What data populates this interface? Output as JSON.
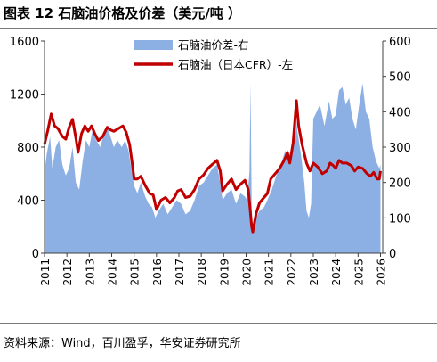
{
  "header": {
    "title": "图表 12 石脑油价格及价差（美元/吨 ）"
  },
  "footer": {
    "source": "资料来源：Wind，百川盈孚，华安证券研究所"
  },
  "colors": {
    "spread_fill": "#8db0e4",
    "price_line": "#c00000",
    "axis": "#404040",
    "text": "#000000"
  },
  "chart_data": {
    "type": "line",
    "legend": [
      {
        "name": "石脑油价差-右",
        "style": "area",
        "axis": "right"
      },
      {
        "name": "石脑油（日本CFR）-左",
        "style": "line",
        "axis": "left"
      }
    ],
    "legend_position": "top-center",
    "grid": false,
    "x_ticks": [
      "2011",
      "2012",
      "2013",
      "2014",
      "2015",
      "2016",
      "2017",
      "2018",
      "2019",
      "2020",
      "2021",
      "2022",
      "2023",
      "2024",
      "2025",
      "2026"
    ],
    "y_left": {
      "ticks": [
        "0",
        "400",
        "800",
        "1200",
        "1600"
      ],
      "range": [
        0,
        1600
      ]
    },
    "y_right": {
      "ticks": [
        "0",
        "100",
        "200",
        "300",
        "400",
        "500",
        "600"
      ],
      "range": [
        0,
        600
      ]
    },
    "series": [
      {
        "name": "石脑油（日本CFR）-左",
        "axis": "left",
        "points": [
          [
            2011.0,
            820
          ],
          [
            2011.15,
            930
          ],
          [
            2011.3,
            1050
          ],
          [
            2011.45,
            960
          ],
          [
            2011.6,
            940
          ],
          [
            2011.8,
            880
          ],
          [
            2011.95,
            860
          ],
          [
            2012.1,
            950
          ],
          [
            2012.25,
            1010
          ],
          [
            2012.4,
            870
          ],
          [
            2012.5,
            760
          ],
          [
            2012.65,
            900
          ],
          [
            2012.8,
            960
          ],
          [
            2012.95,
            920
          ],
          [
            2013.1,
            960
          ],
          [
            2013.25,
            900
          ],
          [
            2013.4,
            850
          ],
          [
            2013.6,
            880
          ],
          [
            2013.8,
            950
          ],
          [
            2013.95,
            930
          ],
          [
            2014.1,
            920
          ],
          [
            2014.3,
            940
          ],
          [
            2014.5,
            960
          ],
          [
            2014.65,
            910
          ],
          [
            2014.8,
            820
          ],
          [
            2014.9,
            700
          ],
          [
            2015.0,
            560
          ],
          [
            2015.15,
            560
          ],
          [
            2015.3,
            580
          ],
          [
            2015.5,
            510
          ],
          [
            2015.7,
            450
          ],
          [
            2015.85,
            440
          ],
          [
            2016.0,
            330
          ],
          [
            2016.2,
            400
          ],
          [
            2016.4,
            420
          ],
          [
            2016.6,
            380
          ],
          [
            2016.8,
            420
          ],
          [
            2016.95,
            470
          ],
          [
            2017.1,
            480
          ],
          [
            2017.3,
            420
          ],
          [
            2017.5,
            430
          ],
          [
            2017.7,
            480
          ],
          [
            2017.9,
            560
          ],
          [
            2018.1,
            590
          ],
          [
            2018.3,
            640
          ],
          [
            2018.5,
            670
          ],
          [
            2018.7,
            700
          ],
          [
            2018.85,
            620
          ],
          [
            2018.95,
            470
          ],
          [
            2019.15,
            520
          ],
          [
            2019.35,
            560
          ],
          [
            2019.55,
            480
          ],
          [
            2019.75,
            520
          ],
          [
            2019.95,
            550
          ],
          [
            2020.1,
            480
          ],
          [
            2020.25,
            200
          ],
          [
            2020.3,
            160
          ],
          [
            2020.45,
            300
          ],
          [
            2020.6,
            380
          ],
          [
            2020.8,
            420
          ],
          [
            2020.95,
            450
          ],
          [
            2021.1,
            560
          ],
          [
            2021.3,
            600
          ],
          [
            2021.5,
            640
          ],
          [
            2021.7,
            700
          ],
          [
            2021.85,
            760
          ],
          [
            2021.95,
            680
          ],
          [
            2022.1,
            830
          ],
          [
            2022.25,
            1150
          ],
          [
            2022.35,
            960
          ],
          [
            2022.5,
            820
          ],
          [
            2022.7,
            680
          ],
          [
            2022.85,
            620
          ],
          [
            2023.0,
            680
          ],
          [
            2023.2,
            650
          ],
          [
            2023.4,
            600
          ],
          [
            2023.6,
            620
          ],
          [
            2023.75,
            680
          ],
          [
            2023.9,
            660
          ],
          [
            2024.0,
            640
          ],
          [
            2024.15,
            700
          ],
          [
            2024.3,
            680
          ],
          [
            2024.5,
            680
          ],
          [
            2024.7,
            660
          ],
          [
            2024.85,
            620
          ],
          [
            2025.0,
            650
          ],
          [
            2025.2,
            640
          ],
          [
            2025.4,
            600
          ],
          [
            2025.55,
            580
          ],
          [
            2025.7,
            610
          ],
          [
            2025.85,
            560
          ],
          [
            2025.95,
            560
          ],
          [
            2026.0,
            620
          ]
        ]
      },
      {
        "name": "石脑油价差-右",
        "axis": "right",
        "points": [
          [
            2011.0,
            230
          ],
          [
            2011.1,
            280
          ],
          [
            2011.25,
            330
          ],
          [
            2011.35,
            240
          ],
          [
            2011.5,
            300
          ],
          [
            2011.65,
            320
          ],
          [
            2011.8,
            250
          ],
          [
            2011.95,
            220
          ],
          [
            2012.1,
            240
          ],
          [
            2012.25,
            300
          ],
          [
            2012.4,
            200
          ],
          [
            2012.55,
            180
          ],
          [
            2012.7,
            260
          ],
          [
            2012.85,
            320
          ],
          [
            2013.0,
            300
          ],
          [
            2013.15,
            350
          ],
          [
            2013.3,
            320
          ],
          [
            2013.5,
            300
          ],
          [
            2013.65,
            340
          ],
          [
            2013.8,
            360
          ],
          [
            2013.95,
            330
          ],
          [
            2014.1,
            300
          ],
          [
            2014.25,
            320
          ],
          [
            2014.45,
            300
          ],
          [
            2014.6,
            320
          ],
          [
            2014.75,
            290
          ],
          [
            2014.9,
            230
          ],
          [
            2015.0,
            190
          ],
          [
            2015.15,
            170
          ],
          [
            2015.3,
            200
          ],
          [
            2015.5,
            160
          ],
          [
            2015.65,
            140
          ],
          [
            2015.8,
            130
          ],
          [
            2015.95,
            100
          ],
          [
            2016.1,
            120
          ],
          [
            2016.3,
            140
          ],
          [
            2016.5,
            110
          ],
          [
            2016.7,
            130
          ],
          [
            2016.9,
            150
          ],
          [
            2017.1,
            140
          ],
          [
            2017.3,
            110
          ],
          [
            2017.5,
            120
          ],
          [
            2017.7,
            150
          ],
          [
            2017.9,
            190
          ],
          [
            2018.1,
            200
          ],
          [
            2018.3,
            220
          ],
          [
            2018.5,
            240
          ],
          [
            2018.7,
            250
          ],
          [
            2018.85,
            200
          ],
          [
            2018.95,
            150
          ],
          [
            2019.15,
            170
          ],
          [
            2019.35,
            180
          ],
          [
            2019.55,
            140
          ],
          [
            2019.75,
            170
          ],
          [
            2019.95,
            160
          ],
          [
            2020.05,
            150
          ],
          [
            2020.15,
            230
          ],
          [
            2020.2,
            480
          ],
          [
            2020.25,
            120
          ],
          [
            2020.3,
            60
          ],
          [
            2020.45,
            100
          ],
          [
            2020.6,
            120
          ],
          [
            2020.8,
            130
          ],
          [
            2020.95,
            150
          ],
          [
            2021.15,
            180
          ],
          [
            2021.35,
            220
          ],
          [
            2021.55,
            250
          ],
          [
            2021.75,
            290
          ],
          [
            2021.9,
            270
          ],
          [
            2022.05,
            300
          ],
          [
            2022.2,
            400
          ],
          [
            2022.3,
            340
          ],
          [
            2022.45,
            280
          ],
          [
            2022.6,
            200
          ],
          [
            2022.7,
            120
          ],
          [
            2022.8,
            100
          ],
          [
            2022.9,
            140
          ],
          [
            2023.0,
            380
          ],
          [
            2023.15,
            400
          ],
          [
            2023.3,
            420
          ],
          [
            2023.5,
            360
          ],
          [
            2023.7,
            430
          ],
          [
            2023.85,
            380
          ],
          [
            2024.0,
            390
          ],
          [
            2024.15,
            460
          ],
          [
            2024.3,
            470
          ],
          [
            2024.45,
            420
          ],
          [
            2024.6,
            440
          ],
          [
            2024.75,
            380
          ],
          [
            2024.9,
            350
          ],
          [
            2025.05,
            420
          ],
          [
            2025.2,
            480
          ],
          [
            2025.35,
            400
          ],
          [
            2025.5,
            380
          ],
          [
            2025.65,
            300
          ],
          [
            2025.8,
            260
          ],
          [
            2025.95,
            240
          ],
          [
            2026.0,
            250
          ]
        ]
      }
    ]
  }
}
